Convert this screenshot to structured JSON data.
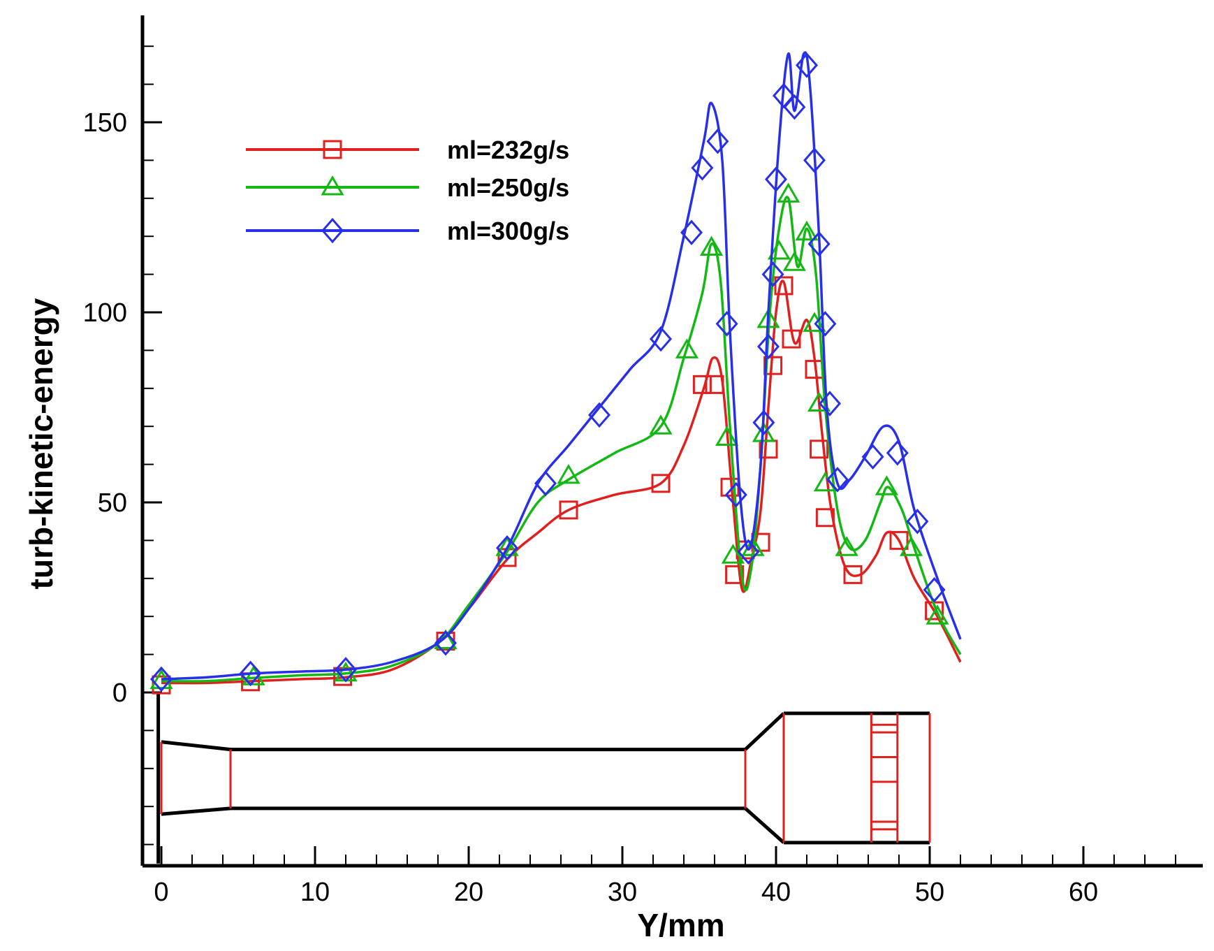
{
  "chart_data": {
    "type": "line",
    "title": "",
    "xlabel": "Y/mm",
    "ylabel": "turb-kinetic-energy",
    "xlim": [
      -1.5,
      67
    ],
    "ylim": [
      -45,
      178
    ],
    "xticks": [
      0,
      10,
      20,
      30,
      40,
      50,
      60
    ],
    "yticks": [
      0,
      50,
      100,
      150
    ],
    "xtick_labels": [
      "0",
      "10",
      "20",
      "30",
      "40",
      "50",
      "60"
    ],
    "ytick_labels": [
      "0",
      "50",
      "100",
      "150"
    ],
    "legend_position": "top-left",
    "series": [
      {
        "name": "ml=232g/s",
        "color": "#e0201f",
        "marker": "square",
        "line_points": [
          [
            0,
            2.5
          ],
          [
            3,
            2.5
          ],
          [
            6,
            3
          ],
          [
            9,
            3.5
          ],
          [
            12,
            4
          ],
          [
            15,
            6
          ],
          [
            18,
            13
          ],
          [
            20,
            22
          ],
          [
            22.5,
            35
          ],
          [
            24.5,
            42
          ],
          [
            26.5,
            48
          ],
          [
            29.5,
            52
          ],
          [
            32.5,
            55
          ],
          [
            34,
            65
          ],
          [
            35.3,
            80
          ],
          [
            35.9,
            88
          ],
          [
            36.5,
            82
          ],
          [
            37.2,
            50
          ],
          [
            37.8,
            27
          ],
          [
            38.4,
            35
          ],
          [
            39,
            48
          ],
          [
            39.5,
            75
          ],
          [
            40,
            100
          ],
          [
            40.5,
            108
          ],
          [
            41.2,
            92
          ],
          [
            42,
            98
          ],
          [
            42.5,
            88
          ],
          [
            43,
            68
          ],
          [
            43.6,
            48
          ],
          [
            44.5,
            33
          ],
          [
            45.5,
            31
          ],
          [
            46.5,
            36
          ],
          [
            47.2,
            42
          ],
          [
            48,
            40
          ],
          [
            49,
            30
          ],
          [
            50.5,
            20
          ],
          [
            52,
            8
          ]
        ],
        "marker_points": [
          [
            0,
            2
          ],
          [
            5.8,
            2.8
          ],
          [
            11.8,
            4.2
          ],
          [
            18.5,
            13.5
          ],
          [
            22.5,
            35.5
          ],
          [
            26.5,
            48
          ],
          [
            32.5,
            55
          ],
          [
            35.2,
            81
          ],
          [
            36,
            81
          ],
          [
            37,
            54
          ],
          [
            37.3,
            31
          ],
          [
            38,
            37.5
          ],
          [
            39,
            39.5
          ],
          [
            39.5,
            64
          ],
          [
            39.8,
            86
          ],
          [
            40.5,
            107
          ],
          [
            41,
            93
          ],
          [
            42.5,
            85
          ],
          [
            42.8,
            64
          ],
          [
            43.2,
            46
          ],
          [
            45,
            31
          ],
          [
            48,
            40
          ],
          [
            50.3,
            21.5
          ]
        ]
      },
      {
        "name": "ml=250g/s",
        "color": "#14b814",
        "marker": "triangle",
        "line_points": [
          [
            0,
            3
          ],
          [
            3,
            3
          ],
          [
            6,
            3.8
          ],
          [
            9,
            4.5
          ],
          [
            12,
            5
          ],
          [
            15,
            7
          ],
          [
            18,
            13
          ],
          [
            20,
            23
          ],
          [
            22.5,
            37
          ],
          [
            24.5,
            50
          ],
          [
            26.5,
            56
          ],
          [
            29.5,
            63
          ],
          [
            32.5,
            70
          ],
          [
            34,
            88
          ],
          [
            35.2,
            105
          ],
          [
            35.8,
            118
          ],
          [
            36.4,
            108
          ],
          [
            37,
            70
          ],
          [
            37.8,
            30
          ],
          [
            38.4,
            33
          ],
          [
            39,
            60
          ],
          [
            39.6,
            100
          ],
          [
            40.2,
            122
          ],
          [
            40.8,
            130
          ],
          [
            41.4,
            112
          ],
          [
            42,
            122
          ],
          [
            42.6,
            110
          ],
          [
            43.2,
            75
          ],
          [
            44,
            48
          ],
          [
            44.8,
            38
          ],
          [
            45.8,
            40
          ],
          [
            46.8,
            50
          ],
          [
            47.3,
            54
          ],
          [
            48.2,
            48
          ],
          [
            49,
            38
          ],
          [
            50.5,
            21
          ],
          [
            52,
            10
          ]
        ],
        "marker_points": [
          [
            0,
            3
          ],
          [
            6,
            4
          ],
          [
            12,
            5
          ],
          [
            18.5,
            13.5
          ],
          [
            22.5,
            38
          ],
          [
            26.5,
            57
          ],
          [
            32.5,
            70
          ],
          [
            34.2,
            90
          ],
          [
            35.8,
            117
          ],
          [
            36.8,
            67
          ],
          [
            37.2,
            36
          ],
          [
            38.5,
            38
          ],
          [
            39.2,
            68
          ],
          [
            39.5,
            98
          ],
          [
            40.2,
            116
          ],
          [
            40.8,
            131
          ],
          [
            41.2,
            113
          ],
          [
            42,
            121
          ],
          [
            42.5,
            97
          ],
          [
            42.8,
            76
          ],
          [
            43.2,
            55
          ],
          [
            44.6,
            38
          ],
          [
            47.2,
            54
          ],
          [
            48.8,
            38
          ],
          [
            50.5,
            20
          ]
        ]
      },
      {
        "name": "ml=300g/s",
        "color": "#2730e8",
        "marker": "diamond",
        "line_points": [
          [
            0,
            3.5
          ],
          [
            3,
            4
          ],
          [
            6,
            5
          ],
          [
            9,
            5.5
          ],
          [
            12,
            6
          ],
          [
            15,
            8
          ],
          [
            18,
            13
          ],
          [
            20,
            22
          ],
          [
            22.5,
            38
          ],
          [
            24.5,
            55
          ],
          [
            26.5,
            65
          ],
          [
            28.5,
            75
          ],
          [
            30.5,
            85
          ],
          [
            32.5,
            95
          ],
          [
            34,
            120
          ],
          [
            35.3,
            145
          ],
          [
            35.8,
            155
          ],
          [
            36.5,
            140
          ],
          [
            37,
            95
          ],
          [
            37.7,
            50
          ],
          [
            38.3,
            38
          ],
          [
            39,
            60
          ],
          [
            39.5,
            100
          ],
          [
            40.2,
            145
          ],
          [
            40.8,
            168
          ],
          [
            41.2,
            153
          ],
          [
            41.8,
            168
          ],
          [
            42.2,
            160
          ],
          [
            42.8,
            120
          ],
          [
            43.3,
            75
          ],
          [
            44,
            55
          ],
          [
            44.8,
            56
          ],
          [
            45.8,
            62
          ],
          [
            47,
            70
          ],
          [
            48,
            66
          ],
          [
            49,
            48
          ],
          [
            50.5,
            30
          ],
          [
            52,
            14
          ]
        ],
        "marker_points": [
          [
            0,
            3.5
          ],
          [
            5.8,
            5
          ],
          [
            12,
            6
          ],
          [
            18.5,
            13
          ],
          [
            22.5,
            38
          ],
          [
            25,
            55
          ],
          [
            28.5,
            73
          ],
          [
            32.5,
            93
          ],
          [
            34.5,
            121
          ],
          [
            35.2,
            138
          ],
          [
            36.2,
            145
          ],
          [
            36.8,
            97
          ],
          [
            37.4,
            52
          ],
          [
            38.2,
            37
          ],
          [
            39.2,
            71
          ],
          [
            39.5,
            91
          ],
          [
            39.8,
            110
          ],
          [
            40,
            135
          ],
          [
            40.5,
            157
          ],
          [
            41.2,
            154
          ],
          [
            42,
            165
          ],
          [
            42.5,
            140
          ],
          [
            42.8,
            118
          ],
          [
            43.2,
            97
          ],
          [
            43.5,
            76
          ],
          [
            44,
            56
          ],
          [
            46.3,
            62
          ],
          [
            47.9,
            63
          ],
          [
            49.2,
            45
          ],
          [
            50.3,
            27
          ]
        ]
      }
    ]
  },
  "geometry_overlay": {
    "description": "Schematic of nozzle cross-section drawn below y=0",
    "outline_color": "#000000",
    "section_color": "#e0201f"
  }
}
